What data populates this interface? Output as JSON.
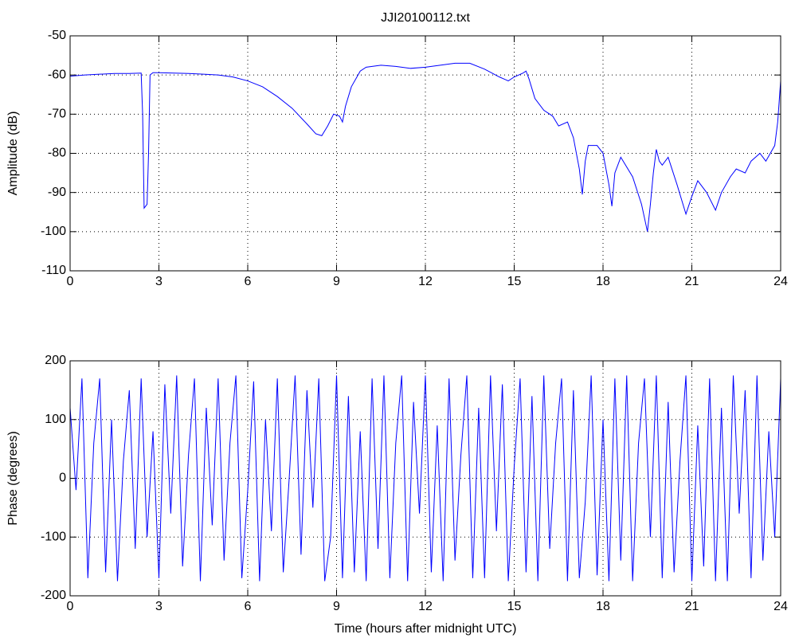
{
  "chart_data": [
    {
      "type": "line",
      "title": "JJI20100112.txt",
      "ylabel": "Amplitude (dB)",
      "color": "#0000ff",
      "grid": true,
      "xlim": [
        0,
        24
      ],
      "xticks": [
        0,
        3,
        6,
        9,
        12,
        15,
        18,
        21,
        24
      ],
      "ylim": [
        -110,
        -50
      ],
      "yticks": [
        -110,
        -100,
        -90,
        -80,
        -70,
        -60,
        -50
      ],
      "x": [
        0,
        0.5,
        1,
        1.5,
        2,
        2.4,
        2.45,
        2.5,
        2.6,
        2.65,
        2.7,
        2.8,
        3,
        3.5,
        4,
        4.5,
        5,
        5.5,
        6,
        6.5,
        7,
        7.5,
        8,
        8.3,
        8.5,
        8.7,
        8.9,
        9.1,
        9.2,
        9.3,
        9.5,
        9.8,
        10,
        10.5,
        11,
        11.5,
        12,
        12.5,
        13,
        13.5,
        14,
        14.5,
        14.8,
        15,
        15.3,
        15.4,
        15.5,
        15.7,
        16,
        16.3,
        16.5,
        16.8,
        17,
        17.2,
        17.3,
        17.4,
        17.5,
        17.8,
        18,
        18.2,
        18.3,
        18.4,
        18.6,
        19,
        19.3,
        19.5,
        19.6,
        19.7,
        19.8,
        19.9,
        20,
        20.2,
        20.5,
        20.8,
        21,
        21.2,
        21.5,
        21.8,
        22,
        22.3,
        22.5,
        22.8,
        23,
        23.3,
        23.5,
        23.8,
        23.9,
        24
      ],
      "values": [
        -60.3,
        -60,
        -59.8,
        -59.6,
        -59.6,
        -59.5,
        -70,
        -94,
        -93,
        -80,
        -60,
        -59.4,
        -59.4,
        -59.5,
        -59.6,
        -59.8,
        -60,
        -60.5,
        -61.5,
        -63,
        -65.5,
        -68.5,
        -72.5,
        -75,
        -75.5,
        -73,
        -70,
        -70.5,
        -72,
        -68,
        -63,
        -59,
        -58,
        -57.5,
        -57.8,
        -58.3,
        -58,
        -57.5,
        -57,
        -57,
        -58.5,
        -60.5,
        -61.5,
        -60.5,
        -59.5,
        -59,
        -61,
        -66,
        -69,
        -70.5,
        -73,
        -72,
        -76,
        -84,
        -90.5,
        -82,
        -78,
        -78,
        -80,
        -88,
        -93.5,
        -85,
        -81,
        -86,
        -93,
        -100,
        -93,
        -85,
        -79,
        -82,
        -83,
        -81,
        -88,
        -95.5,
        -91,
        -87,
        -90,
        -94.5,
        -90,
        -86,
        -84,
        -85,
        -82,
        -80,
        -82,
        -78,
        -72,
        -61.5
      ]
    },
    {
      "type": "line",
      "ylabel": "Phase (degrees)",
      "xlabel": "Time (hours after midnight UTC)",
      "color": "#0000ff",
      "grid": true,
      "xlim": [
        0,
        24
      ],
      "xticks": [
        0,
        3,
        6,
        9,
        12,
        15,
        18,
        21,
        24
      ],
      "ylim": [
        -200,
        200
      ],
      "yticks": [
        -200,
        -100,
        0,
        100,
        200
      ],
      "x": [
        0,
        0.2,
        0.4,
        0.6,
        0.8,
        1,
        1.2,
        1.4,
        1.6,
        1.8,
        2,
        2.2,
        2.4,
        2.6,
        2.8,
        3,
        3.2,
        3.4,
        3.6,
        3.8,
        4,
        4.2,
        4.4,
        4.6,
        4.8,
        5,
        5.2,
        5.4,
        5.6,
        5.8,
        6,
        6.2,
        6.4,
        6.6,
        6.8,
        7,
        7.2,
        7.4,
        7.6,
        7.8,
        8,
        8.2,
        8.4,
        8.6,
        8.8,
        9,
        9.2,
        9.4,
        9.6,
        9.8,
        10,
        10.2,
        10.4,
        10.6,
        10.8,
        11,
        11.2,
        11.4,
        11.6,
        11.8,
        12,
        12.2,
        12.4,
        12.6,
        12.8,
        13,
        13.2,
        13.4,
        13.6,
        13.8,
        14,
        14.2,
        14.4,
        14.6,
        14.8,
        15,
        15.2,
        15.4,
        15.6,
        15.8,
        16,
        16.2,
        16.4,
        16.6,
        16.8,
        17,
        17.2,
        17.4,
        17.6,
        17.8,
        18,
        18.2,
        18.4,
        18.6,
        18.8,
        19,
        19.2,
        19.4,
        19.6,
        19.8,
        20,
        20.2,
        20.4,
        20.6,
        20.8,
        21,
        21.2,
        21.4,
        21.6,
        21.8,
        22,
        22.2,
        22.4,
        22.6,
        22.8,
        23,
        23.2,
        23.4,
        23.6,
        23.8,
        24
      ],
      "values": [
        120,
        -20,
        170,
        -170,
        60,
        170,
        -160,
        100,
        -175,
        30,
        150,
        -120,
        170,
        -100,
        80,
        -170,
        160,
        -60,
        175,
        -150,
        40,
        170,
        -175,
        120,
        -80,
        170,
        -140,
        60,
        175,
        -170,
        -20,
        165,
        -175,
        100,
        -90,
        170,
        -160,
        0,
        175,
        -130,
        150,
        -50,
        170,
        -175,
        -100,
        175,
        -170,
        140,
        -160,
        80,
        -175,
        170,
        -120,
        175,
        -170,
        60,
        175,
        -175,
        130,
        -60,
        175,
        -160,
        90,
        -175,
        170,
        -140,
        40,
        175,
        -170,
        120,
        -170,
        175,
        -90,
        160,
        -175,
        20,
        170,
        -160,
        140,
        -175,
        175,
        -120,
        60,
        170,
        -175,
        150,
        -170,
        -40,
        175,
        -165,
        100,
        -175,
        170,
        -140,
        175,
        -175,
        60,
        170,
        -100,
        175,
        -170,
        130,
        -160,
        30,
        175,
        -175,
        90,
        -150,
        170,
        -175,
        120,
        -175,
        175,
        -60,
        150,
        -170,
        175,
        -140,
        80,
        -100,
        170
      ]
    }
  ]
}
